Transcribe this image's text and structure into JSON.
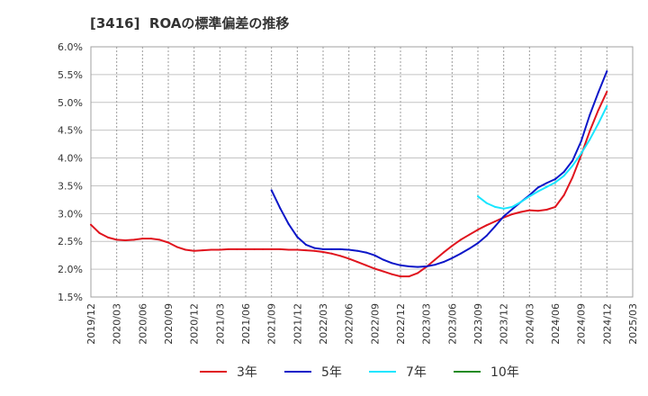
{
  "chart_data": {
    "type": "line",
    "title": "[3416]  ROAの標準偏差の推移",
    "xlabel": "",
    "ylabel": "",
    "xlim": [
      "2019/12",
      "2025/03"
    ],
    "xticks": [
      "2019/12",
      "2020/03",
      "2020/06",
      "2020/09",
      "2020/12",
      "2021/03",
      "2021/06",
      "2021/09",
      "2021/12",
      "2022/03",
      "2022/06",
      "2022/09",
      "2022/12",
      "2023/03",
      "2023/06",
      "2023/09",
      "2023/12",
      "2024/03",
      "2024/06",
      "2024/09",
      "2024/12",
      "2025/03"
    ],
    "ylim": [
      1.5,
      6.0
    ],
    "yticks": [
      1.5,
      2.0,
      2.5,
      3.0,
      3.5,
      4.0,
      4.5,
      5.0,
      5.5,
      6.0
    ],
    "ytick_labels": [
      "1.5%",
      "2.0%",
      "2.5%",
      "3.0%",
      "3.5%",
      "4.0%",
      "4.5%",
      "5.0%",
      "5.5%",
      "6.0%"
    ],
    "grid": true,
    "x_step_months": 1,
    "series": [
      {
        "name": "3年",
        "color": "#e0141e",
        "start": "2019/12",
        "values": [
          2.8,
          2.65,
          2.57,
          2.53,
          2.52,
          2.53,
          2.55,
          2.55,
          2.53,
          2.48,
          2.4,
          2.35,
          2.33,
          2.34,
          2.35,
          2.35,
          2.36,
          2.36,
          2.36,
          2.36,
          2.36,
          2.36,
          2.36,
          2.35,
          2.35,
          2.34,
          2.33,
          2.31,
          2.28,
          2.24,
          2.19,
          2.13,
          2.07,
          2.01,
          1.96,
          1.91,
          1.87,
          1.87,
          1.93,
          2.04,
          2.17,
          2.3,
          2.42,
          2.53,
          2.62,
          2.71,
          2.79,
          2.86,
          2.93,
          2.99,
          3.03,
          3.06,
          3.05,
          3.07,
          3.12,
          3.33,
          3.65,
          4.05,
          4.48,
          4.86,
          5.19
        ]
      },
      {
        "name": "5年",
        "color": "#0c16c8",
        "start": "2021/09",
        "values": [
          3.42,
          3.1,
          2.81,
          2.58,
          2.44,
          2.38,
          2.36,
          2.36,
          2.36,
          2.35,
          2.33,
          2.3,
          2.25,
          2.17,
          2.11,
          2.07,
          2.05,
          2.04,
          2.05,
          2.08,
          2.13,
          2.2,
          2.28,
          2.37,
          2.47,
          2.6,
          2.77,
          2.95,
          3.08,
          3.21,
          3.33,
          3.47,
          3.55,
          3.62,
          3.75,
          3.95,
          4.3,
          4.77,
          5.18,
          5.56
        ]
      },
      {
        "name": "7年",
        "color": "#18e6ff",
        "start": "2023/09",
        "values": [
          3.31,
          3.19,
          3.12,
          3.09,
          3.12,
          3.21,
          3.31,
          3.4,
          3.48,
          3.56,
          3.68,
          3.86,
          4.08,
          4.33,
          4.62,
          4.93
        ]
      },
      {
        "name": "10年",
        "color": "#228b22",
        "start": null,
        "values": []
      }
    ]
  }
}
